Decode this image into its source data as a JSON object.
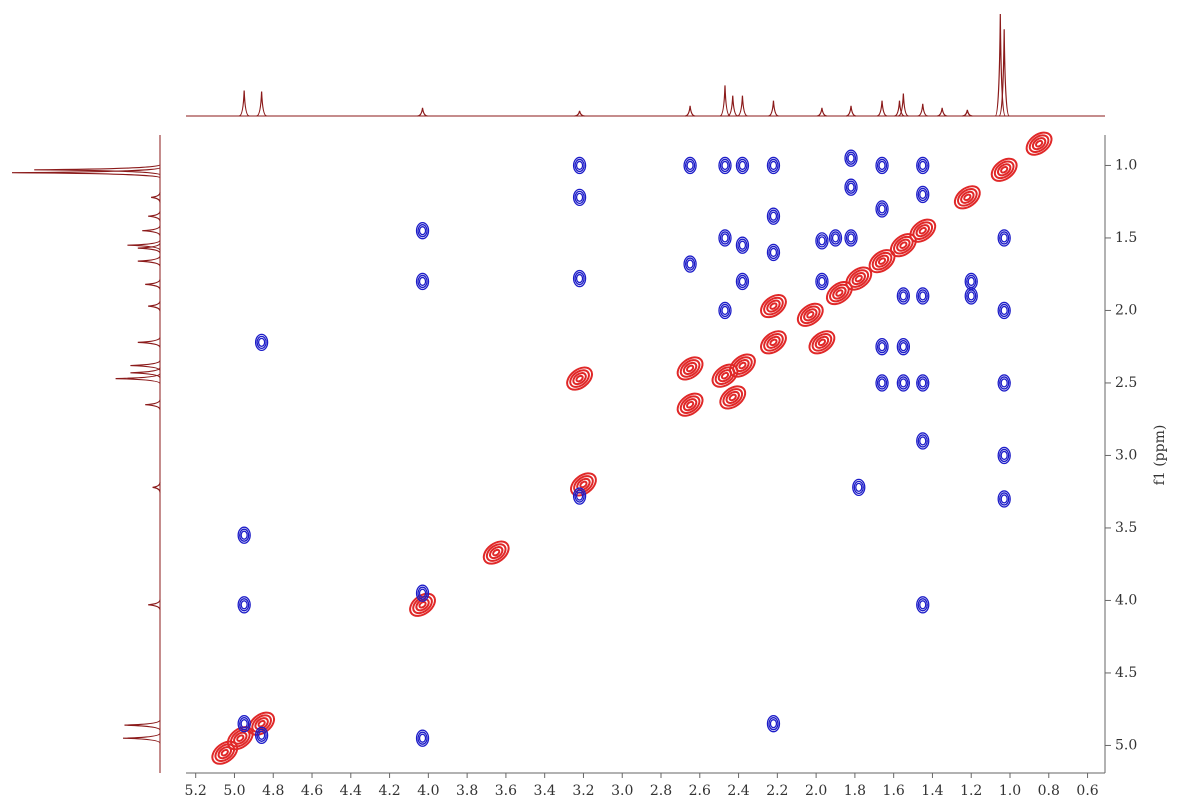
{
  "chart_data": {
    "type": "contour2d",
    "ylabel": "f1 (ppm)",
    "xlim": [
      5.25,
      0.51
    ],
    "ylim": [
      0.79,
      5.19
    ],
    "xticks": [
      5.2,
      {
        "value": 5,
        "label": "5.0"
      },
      4.8,
      4.6,
      4.4,
      4.2,
      {
        "value": 4,
        "label": "4.0"
      },
      3.8,
      3.6,
      3.4,
      3.2,
      {
        "value": 3,
        "label": "3.0"
      },
      2.8,
      2.6,
      2.4,
      2.2,
      {
        "value": 2,
        "label": "2.0"
      },
      1.8,
      1.6,
      1.4,
      1.2,
      {
        "value": 1,
        "label": "1.0"
      },
      0.8,
      0.6
    ],
    "yticks": [
      {
        "value": 1,
        "label": "1.0"
      },
      1.5,
      {
        "value": 2,
        "label": "2.0"
      },
      2.5,
      {
        "value": 3,
        "label": "3.0"
      },
      3.5,
      {
        "value": 4,
        "label": "4.0"
      },
      4.5,
      {
        "value": 5,
        "label": "5.0"
      }
    ],
    "series": [
      {
        "color": "#e02828",
        "x": [
          5.05,
          4.97,
          4.86,
          4.03,
          3.65,
          3.2,
          2.65,
          2.65,
          2.47,
          2.38,
          2.22,
          2.22,
          2.43,
          1.97,
          3.22,
          2.03,
          1.88,
          1.78,
          1.66,
          1.55,
          1.45,
          1.22,
          1.03,
          0.85
        ],
        "y": [
          5.05,
          4.95,
          4.85,
          4.03,
          3.67,
          3.2,
          2.65,
          2.4,
          2.45,
          2.38,
          2.22,
          1.97,
          2.6,
          2.22,
          2.47,
          2.03,
          1.88,
          1.78,
          1.66,
          1.55,
          1.45,
          1.22,
          1.03,
          0.85
        ]
      },
      {
        "color": "#1c1cc8",
        "x": [
          3.22,
          3.22,
          3.22,
          3.22,
          4.03,
          4.03,
          4.03,
          4.03,
          4.86,
          4.95,
          4.95,
          4.95,
          4.86,
          2.22,
          2.47,
          2.47,
          2.47,
          2.38,
          2.38,
          2.38,
          2.22,
          2.22,
          2.22,
          2.65,
          2.65,
          1.97,
          1.97,
          1.82,
          1.82,
          1.82,
          1.9,
          1.78,
          1.66,
          1.66,
          1.66,
          1.66,
          1.55,
          1.55,
          1.55,
          1.45,
          1.45,
          1.45,
          1.45,
          1.2,
          1.2,
          1.03,
          1.03,
          1.03,
          1.03,
          1.03,
          1.45,
          1.45
        ],
        "y": [
          1.0,
          1.22,
          1.78,
          3.28,
          1.45,
          1.8,
          4.95,
          3.95,
          2.22,
          4.03,
          3.55,
          4.85,
          4.93,
          4.85,
          1.0,
          1.5,
          2.0,
          1.0,
          1.55,
          1.8,
          1.0,
          1.6,
          1.35,
          1.0,
          1.68,
          1.52,
          1.8,
          1.5,
          1.15,
          0.95,
          1.5,
          3.22,
          1.0,
          1.3,
          2.25,
          2.5,
          2.25,
          1.9,
          2.5,
          1.9,
          2.5,
          4.03,
          1.0,
          1.8,
          1.9,
          1.5,
          2.0,
          2.5,
          3.0,
          3.3,
          1.2,
          2.9
        ]
      }
    ],
    "projection": {
      "color": "#8b1a1a",
      "ppm": [
        4.95,
        4.86,
        4.03,
        3.22,
        2.65,
        2.47,
        2.43,
        2.38,
        2.22,
        1.97,
        1.82,
        1.66,
        1.57,
        1.55,
        1.45,
        1.35,
        1.22,
        1.05,
        1.03
      ],
      "intensity": [
        0.25,
        0.24,
        0.08,
        0.05,
        0.1,
        0.3,
        0.2,
        0.2,
        0.15,
        0.08,
        0.1,
        0.15,
        0.15,
        0.22,
        0.12,
        0.08,
        0.06,
        1.0,
        0.85
      ]
    }
  }
}
